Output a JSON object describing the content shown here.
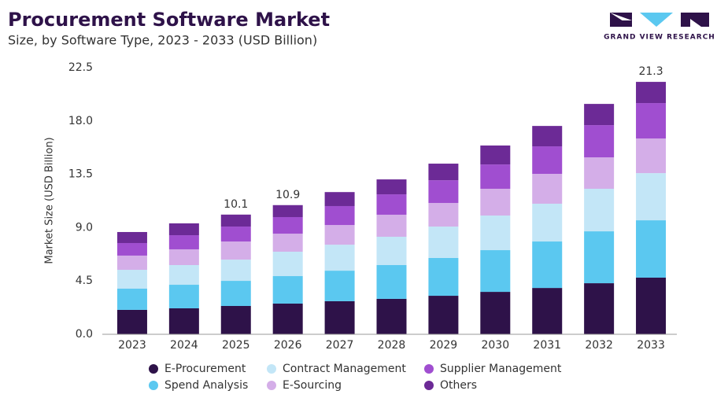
{
  "chart_data": {
    "type": "stacked_bar",
    "title": "Procurement Software Market",
    "subtitle": "Size, by Software Type, 2023 - 2033 (USD Billion)",
    "y_label": "Market Size (USD Billion)",
    "logo": "GRAND VIEW RESEARCH",
    "categories": [
      "2023",
      "2024",
      "2025",
      "2026",
      "2027",
      "2028",
      "2029",
      "2030",
      "2031",
      "2032",
      "2033"
    ],
    "series": [
      {
        "name": "E-Procurement",
        "color": "#2e1249",
        "values": [
          2.06,
          2.19,
          2.39,
          2.59,
          2.79,
          2.99,
          3.25,
          3.58,
          3.91,
          4.31,
          4.78
        ]
      },
      {
        "name": "Spend Analysis",
        "color": "#5bc8f0",
        "values": [
          1.79,
          1.99,
          2.12,
          2.32,
          2.58,
          2.85,
          3.19,
          3.52,
          3.92,
          4.38,
          4.84
        ]
      },
      {
        "name": "Contract Management",
        "color": "#c3e6f7",
        "values": [
          1.59,
          1.66,
          1.79,
          2.06,
          2.19,
          2.39,
          2.65,
          2.92,
          3.19,
          3.59,
          3.98
        ]
      },
      {
        "name": "E-Sourcing",
        "color": "#d4aee8",
        "values": [
          1.2,
          1.33,
          1.53,
          1.52,
          1.66,
          1.86,
          1.99,
          2.26,
          2.52,
          2.65,
          2.92
        ]
      },
      {
        "name": "Supplier Management",
        "color": "#a04ed0",
        "values": [
          1.06,
          1.19,
          1.26,
          1.4,
          1.6,
          1.72,
          1.92,
          2.05,
          2.32,
          2.72,
          2.99
        ]
      },
      {
        "name": "Others",
        "color": "#6c2a96",
        "values": [
          0.93,
          1.0,
          1.01,
          1.01,
          1.18,
          1.26,
          1.4,
          1.6,
          1.72,
          1.79,
          1.79
        ]
      }
    ],
    "annotations": [
      {
        "x": "2025",
        "value": 10.1
      },
      {
        "x": "2026",
        "value": 10.9
      },
      {
        "x": "2033",
        "value": 21.3
      }
    ],
    "ylim": [
      0,
      22.5
    ],
    "yticks": [
      {
        "value": 0,
        "label": "0.0"
      },
      4.5,
      {
        "value": 9,
        "label": "9.0"
      },
      13.5,
      {
        "value": 18,
        "label": "18.0"
      },
      22.5
    ],
    "grid": false
  }
}
